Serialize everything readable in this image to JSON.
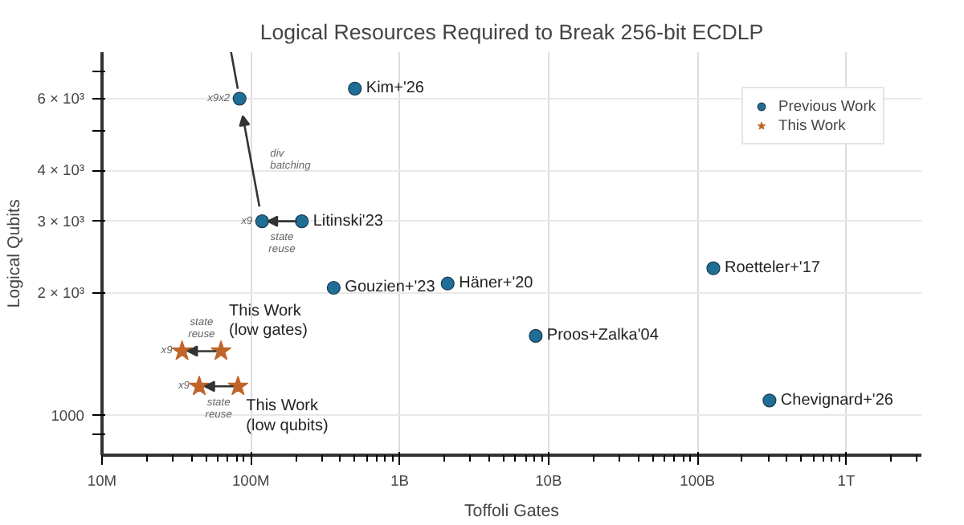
{
  "chart_data": {
    "type": "scatter",
    "title": "Logical Resources Required to Break 256-bit ECDLP",
    "xlabel": "Toffoli Gates",
    "ylabel": "Logical Qubits",
    "log": "xy",
    "grid": true,
    "legend": "top right",
    "xlim": [
      10000000,
      3200000000000
    ],
    "ylim": [
      800,
      7800
    ],
    "xticks": [
      {
        "value": 10000000,
        "label": "10M"
      },
      {
        "value": 100000000,
        "label": "100M"
      },
      {
        "value": 1000000000,
        "label": "1B"
      },
      {
        "value": 10000000000,
        "label": "10B"
      },
      {
        "value": 100000000000,
        "label": "100B"
      },
      {
        "value": 1000000000000,
        "label": "1T"
      }
    ],
    "yticks": [
      {
        "value": 900,
        "label": null
      },
      1000,
      {
        "value": 2000,
        "label": "2 × 10³"
      },
      {
        "value": 3000,
        "label": "3 × 10³"
      },
      {
        "value": 4000,
        "label": "4 × 10³"
      },
      {
        "value": 5000,
        "label": null
      },
      {
        "value": 6000,
        "label": "6 × 10³"
      },
      {
        "value": 7000,
        "label": null
      }
    ],
    "series": [
      {
        "name": "Previous Work",
        "color": "#1f6e96",
        "marker": "circle",
        "x": [
          84000000,
          119000000,
          220000000,
          500000000,
          360000000,
          2100000000,
          128000000000,
          8200000000,
          305000000000
        ],
        "values": [
          6000,
          3000,
          3000,
          6350,
          2060,
          2110,
          2300,
          1570,
          1090
        ]
      },
      {
        "name": "This Work",
        "color": "#c0652a",
        "marker": "star",
        "x": [
          34500000,
          63000000,
          45000000,
          82000000
        ],
        "values": [
          1440,
          1440,
          1180,
          1180
        ]
      }
    ],
    "annotations": [
      {
        "text": "Kim+'26",
        "x": 500000000,
        "y": 6350
      },
      {
        "text": "Litinski'23",
        "x": 220000000,
        "y": 3000
      },
      {
        "text": "Gouzien+'23",
        "x": 360000000,
        "y": 2060
      },
      {
        "text": "Häner+'20",
        "x": 2100000000,
        "y": 2110
      },
      {
        "text": "Roetteler+'17",
        "x": 128000000000,
        "y": 2300
      },
      {
        "text": "Proos+Zalka'04",
        "x": 8200000000,
        "y": 1570
      },
      {
        "text": "Chevignard+'26",
        "x": 305000000000,
        "y": 1090
      },
      {
        "text": "This Work\n(low gates)",
        "x": 63000000,
        "y": 1440
      },
      {
        "text": "This Work\n(low qubits)",
        "x": 82000000,
        "y": 1180
      },
      {
        "text": "x9x2",
        "x": 84000000,
        "y": 6000
      },
      {
        "text": "x9",
        "x": 119000000,
        "y": 3000
      },
      {
        "text": "x9",
        "x": 34500000,
        "y": 1440
      },
      {
        "text": "x9",
        "x": 45000000,
        "y": 1180
      },
      "state\nreuse",
      "div\nbatching",
      "state\nreuse",
      "state\nreuse"
    ]
  }
}
